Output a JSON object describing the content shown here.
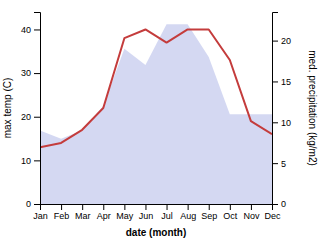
{
  "chart_data": {
    "type": "line",
    "categories": [
      "Jan",
      "Feb",
      "Mar",
      "Apr",
      "May",
      "Jun",
      "Jul",
      "Aug",
      "Sep",
      "Oct",
      "Nov",
      "Dec"
    ],
    "x_label": "date (month)",
    "y_label": "max temp (C)",
    "y2_label": "med. precipitation (kg/m2)",
    "series": [
      {
        "type": "area",
        "axis": "y2",
        "color": "#b0b8e8",
        "values": [
          9,
          8,
          9,
          12,
          19,
          17,
          22,
          22,
          18,
          11,
          11,
          11
        ]
      },
      {
        "type": "line",
        "color": "#c43c3c",
        "values": [
          13,
          14,
          17,
          22,
          38,
          40,
          37,
          40,
          40,
          33,
          19,
          16
        ]
      }
    ],
    "ylim": [
      0,
      44
    ],
    "yticks": [
      0,
      10,
      20,
      30,
      40
    ],
    "y2lim": [
      0,
      23.5
    ],
    "y2ticks": [
      0,
      5,
      10,
      15,
      20
    ],
    "grid": false
  }
}
